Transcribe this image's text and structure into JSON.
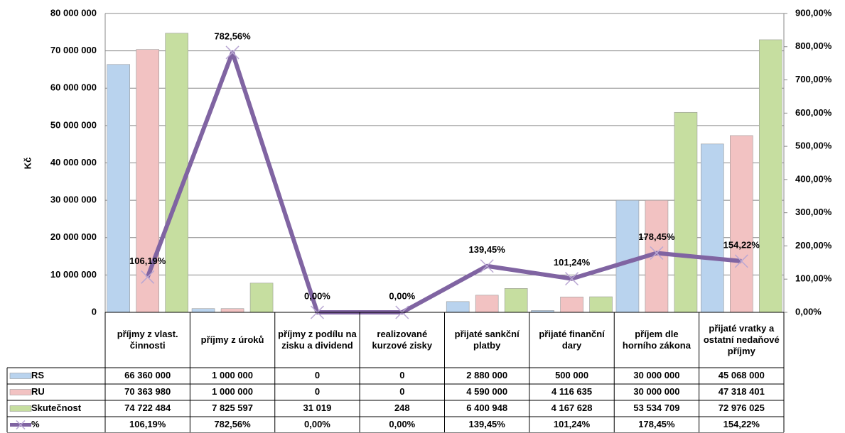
{
  "chart_data": {
    "type": "bar",
    "y_label": "Kč",
    "categories": [
      "příjmy z vlast. činnosti",
      "příjmy z úroků",
      "příjmy z podílu na zisku a dividend",
      "realizované kurzové zisky",
      "přijaté sankční platby",
      "přijaté finanční dary",
      "příjem dle horního zákona",
      "přijaté vratky a ostatní nedaňové příjmy"
    ],
    "series": [
      {
        "name": "RS",
        "color": "#b9d3ee",
        "values": [
          66360000,
          1000000,
          0,
          0,
          2880000,
          500000,
          30000000,
          45068000
        ],
        "value_labels": [
          "66 360 000",
          "1 000 000",
          "0",
          "0",
          "2 880 000",
          "500 000",
          "30 000 000",
          "45 068 000"
        ]
      },
      {
        "name": "RU",
        "color": "#f2c2c2",
        "values": [
          70363980,
          1000000,
          0,
          0,
          4590000,
          4116635,
          30000000,
          47318401
        ],
        "value_labels": [
          "70 363 980",
          "1 000 000",
          "0",
          "0",
          "4 590 000",
          "4 116 635",
          "30 000 000",
          "47 318 401"
        ]
      },
      {
        "name": "Skutečnost",
        "color": "#c6dea0",
        "values": [
          74722484,
          7825597,
          31019,
          248,
          6400948,
          4167628,
          53534709,
          72976025
        ],
        "value_labels": [
          "74 722 484",
          "7 825 597",
          "31 019",
          "248",
          "6 400 948",
          "4 167 628",
          "53 534 709",
          "72 976 025"
        ]
      },
      {
        "name": "%",
        "color": "#8064a2",
        "type": "line",
        "axis": "y2",
        "values": [
          106.19,
          782.56,
          0,
          0,
          139.45,
          101.24,
          178.45,
          154.22
        ],
        "value_labels": [
          "106,19%",
          "782,56%",
          "0,00%",
          "0,00%",
          "139,45%",
          "101,24%",
          "178,45%",
          "154,22%"
        ]
      }
    ],
    "ylim": [
      0,
      80000000
    ],
    "yticks": [
      {
        "value": 0,
        "label": "0"
      },
      {
        "value": 10000000,
        "label": "10 000 000"
      },
      {
        "value": 20000000,
        "label": "20 000 000"
      },
      {
        "value": 30000000,
        "label": "30 000 000"
      },
      {
        "value": 40000000,
        "label": "40 000 000"
      },
      {
        "value": 50000000,
        "label": "50 000 000"
      },
      {
        "value": 60000000,
        "label": "60 000 000"
      },
      {
        "value": 70000000,
        "label": "70 000 000"
      },
      {
        "value": 80000000,
        "label": "80 000 000"
      }
    ],
    "y2lim": [
      0,
      900
    ],
    "y2ticks": [
      {
        "value": 0,
        "label": "0,00%"
      },
      {
        "value": 100,
        "label": "100,00%"
      },
      {
        "value": 200,
        "label": "200,00%"
      },
      {
        "value": 300,
        "label": "300,00%"
      },
      {
        "value": 400,
        "label": "400,00%"
      },
      {
        "value": 500,
        "label": "500,00%"
      },
      {
        "value": 600,
        "label": "600,00%"
      },
      {
        "value": 700,
        "label": "700,00%"
      },
      {
        "value": 800,
        "label": "800,00%"
      },
      {
        "value": 900,
        "label": "900,00%"
      }
    ],
    "grid": true
  }
}
